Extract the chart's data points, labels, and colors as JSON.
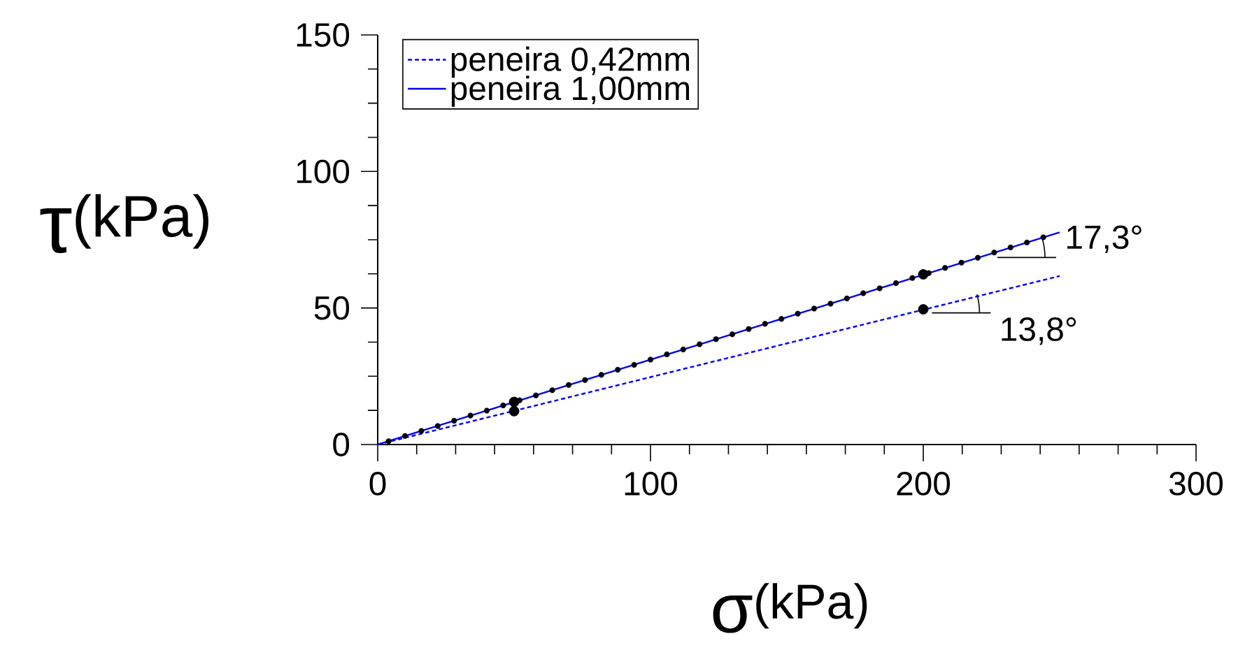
{
  "chart_data": {
    "type": "line",
    "xlabel": "σ$^{(kPa)}$",
    "ylabel": "τ$^{(kPa)}$",
    "xlim": [
      0,
      300
    ],
    "ylim": [
      0,
      150
    ],
    "xticks": [
      0,
      100,
      200,
      300
    ],
    "yticks": [
      0,
      50,
      100,
      150
    ],
    "grid": false,
    "legend": "top left",
    "series": [
      {
        "name": "peneira 0,42mm",
        "color": "#0000ff",
        "line_style": "dashed",
        "x": [
          0,
          250
        ],
        "values": [
          0,
          61.7
        ]
      },
      {
        "name": "peneira 1,00mm",
        "color": "#0000ff",
        "line_style": "solid",
        "x": [
          0,
          250
        ],
        "values": [
          0,
          77.7
        ]
      },
      {
        "color": "#000000",
        "line_style": "dotted",
        "marker": "circle",
        "x": [
          4,
          10,
          16,
          22,
          28,
          34,
          40,
          46,
          52,
          58,
          64,
          70,
          76,
          82,
          88,
          94,
          100,
          106,
          112,
          118,
          124,
          130,
          136,
          142,
          148,
          154,
          160,
          166,
          172,
          178,
          184,
          190,
          196,
          202,
          208,
          214,
          220,
          226,
          232,
          238,
          244
        ],
        "values": [
          1.2,
          3.1,
          5.0,
          6.8,
          8.7,
          10.6,
          12.4,
          14.3,
          16.2,
          18.0,
          19.9,
          21.8,
          23.6,
          25.5,
          27.4,
          29.2,
          31.1,
          33.0,
          34.8,
          36.7,
          38.6,
          40.4,
          42.3,
          44.2,
          46.0,
          47.9,
          49.8,
          51.6,
          53.5,
          55.4,
          57.2,
          59.1,
          61.0,
          62.8,
          64.7,
          66.6,
          68.4,
          70.3,
          72.2,
          74.0,
          75.9
        ]
      },
      {
        "type": "scatter",
        "color": "#000000",
        "marker": "circle",
        "x": [
          50,
          50,
          200,
          200
        ],
        "values": [
          15.6,
          12.2,
          62.3,
          49.5
        ]
      }
    ],
    "annotations": [
      {
        "text": "17,3°",
        "x": 220,
        "y": 68.5
      },
      {
        "text": "13,8°",
        "x": 196,
        "y": 48.2
      }
    ]
  }
}
